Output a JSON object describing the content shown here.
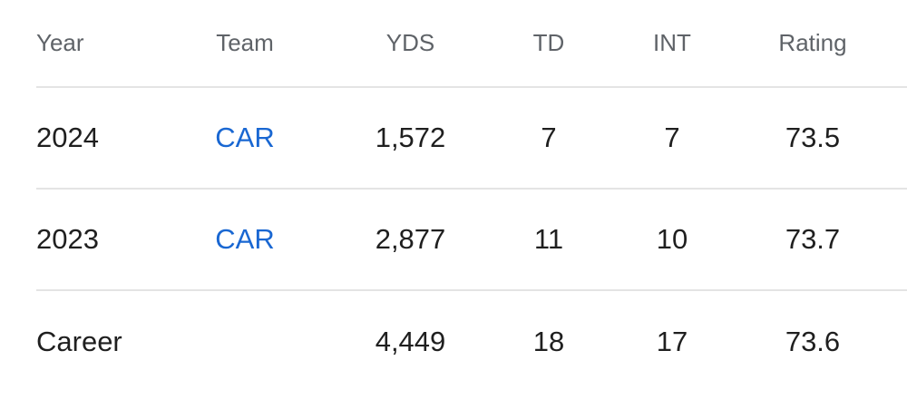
{
  "table": {
    "columns": {
      "year_label": "Year",
      "team_label": "Team",
      "yds_label": "YDS",
      "td_label": "TD",
      "int_label": "INT",
      "rating_label": "Rating"
    },
    "rows": [
      {
        "year": "2024",
        "team": "CAR",
        "yds": "1,572",
        "td": "7",
        "int": "7",
        "rating": "73.5"
      },
      {
        "year": "2023",
        "team": "CAR",
        "yds": "2,877",
        "td": "11",
        "int": "10",
        "rating": "73.7"
      },
      {
        "year": "Career",
        "team": "",
        "yds": "4,449",
        "td": "18",
        "int": "17",
        "rating": "73.6"
      }
    ]
  },
  "colors": {
    "header_text": "#5f6368",
    "body_text": "#1f1f1f",
    "team_link": "#1967d2",
    "divider": "#e4e4e4",
    "background": "#ffffff"
  }
}
